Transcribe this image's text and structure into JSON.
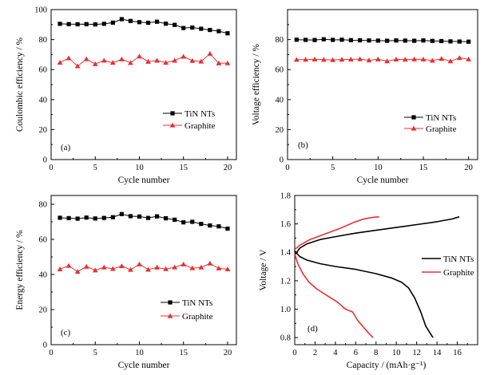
{
  "chart_data": [
    {
      "id": "a",
      "type": "line",
      "panel_label": "(a)",
      "xlabel": "Cycle number",
      "ylabel": "Coulombic efficiency / %",
      "xlim": [
        0,
        21
      ],
      "ylim": [
        0,
        100
      ],
      "xticks": [
        0,
        5,
        10,
        15,
        20
      ],
      "yticks": [
        0,
        20,
        40,
        60,
        80,
        100
      ],
      "legend_position": "lower-right",
      "x": [
        1,
        2,
        3,
        4,
        5,
        6,
        7,
        8,
        9,
        10,
        11,
        12,
        13,
        14,
        15,
        16,
        17,
        18,
        19,
        20
      ],
      "series": [
        {
          "name": "TiN NTs",
          "marker": "square",
          "color": "#000000",
          "values": [
            90.5,
            90.3,
            90.2,
            90.3,
            90.1,
            90.5,
            91.3,
            93.6,
            92.4,
            91.6,
            91.2,
            91.9,
            90.6,
            89.8,
            87.7,
            88.0,
            87.2,
            86.4,
            85.6,
            84.2
          ]
        },
        {
          "name": "Graphite",
          "marker": "triangle",
          "color": "#e8312f",
          "values": [
            64.7,
            67.6,
            62.3,
            67.0,
            63.7,
            66.1,
            64.6,
            66.9,
            64.5,
            68.8,
            65.3,
            66.0,
            64.6,
            66.0,
            68.7,
            65.9,
            65.4,
            70.6,
            64.2,
            64.3
          ]
        }
      ]
    },
    {
      "id": "b",
      "type": "line",
      "panel_label": "(b)",
      "xlabel": "Cycle number",
      "ylabel": "Voltage efficiency / %",
      "xlim": [
        0,
        21
      ],
      "ylim": [
        0,
        100
      ],
      "xticks": [
        0,
        5,
        10,
        15,
        20
      ],
      "yticks": [
        0,
        20,
        40,
        60,
        80
      ],
      "legend_position": "lower-right",
      "x": [
        1,
        2,
        3,
        4,
        5,
        6,
        7,
        8,
        9,
        10,
        11,
        12,
        13,
        14,
        15,
        16,
        17,
        18,
        19,
        20
      ],
      "series": [
        {
          "name": "TiN NTs",
          "marker": "square",
          "color": "#000000",
          "values": [
            79.9,
            79.8,
            79.7,
            80.2,
            79.8,
            79.9,
            79.6,
            79.5,
            79.4,
            79.3,
            79.2,
            79.4,
            79.3,
            79.2,
            79.4,
            79.1,
            79.0,
            78.8,
            78.7,
            78.6
          ]
        },
        {
          "name": "Graphite",
          "marker": "triangle",
          "color": "#e8312f",
          "values": [
            66.6,
            66.7,
            66.8,
            66.6,
            66.4,
            66.7,
            66.8,
            67.0,
            66.2,
            66.9,
            65.6,
            66.8,
            66.7,
            66.9,
            66.8,
            66.0,
            67.2,
            65.6,
            67.8,
            66.9
          ]
        }
      ]
    },
    {
      "id": "c",
      "type": "line",
      "panel_label": "(c)",
      "xlabel": "Cycle number",
      "ylabel": "Energy efficiency / %",
      "xlim": [
        0,
        21
      ],
      "ylim": [
        0,
        85
      ],
      "xticks": [
        0,
        5,
        10,
        15,
        20
      ],
      "yticks": [
        0,
        20,
        40,
        60,
        80
      ],
      "legend_position": "lower-right",
      "x": [
        1,
        2,
        3,
        4,
        5,
        6,
        7,
        8,
        9,
        10,
        11,
        12,
        13,
        14,
        15,
        16,
        17,
        18,
        19,
        20
      ],
      "series": [
        {
          "name": "TiN NTs",
          "marker": "square",
          "color": "#000000",
          "values": [
            72.3,
            72.1,
            71.8,
            72.4,
            71.9,
            72.2,
            72.6,
            74.4,
            73.2,
            73.0,
            72.2,
            73.1,
            72.0,
            71.2,
            69.7,
            70.0,
            68.8,
            67.9,
            67.4,
            66.1
          ]
        },
        {
          "name": "Graphite",
          "marker": "triangle",
          "color": "#e8312f",
          "values": [
            43.0,
            45.0,
            41.6,
            44.5,
            42.4,
            44.1,
            43.2,
            44.8,
            42.7,
            45.8,
            42.8,
            44.0,
            43.1,
            44.1,
            45.8,
            43.6,
            44.0,
            46.3,
            43.5,
            43.0
          ]
        }
      ]
    },
    {
      "id": "d",
      "type": "line",
      "panel_label": "(d)",
      "xlabel": "Capacity / (mAh·g⁻¹)",
      "ylabel": "Voltage / V",
      "xlim": [
        0,
        18
      ],
      "ylim": [
        0.75,
        1.8
      ],
      "xticks": [
        0,
        2,
        4,
        6,
        8,
        10,
        12,
        14,
        16
      ],
      "yticks": [
        0.8,
        1.0,
        1.2,
        1.4,
        1.6,
        1.8
      ],
      "ytick_labels": [
        "0.8",
        "1.0",
        "1.2",
        "1.4",
        "1.6",
        "1.8"
      ],
      "legend_position": "right",
      "series": [
        {
          "name": "TiN NTs",
          "color": "#000000",
          "segments": [
            [
              [
                0,
                1.38
              ],
              [
                0.5,
                1.43
              ],
              [
                1.2,
                1.46
              ],
              [
                2.5,
                1.49
              ],
              [
                4,
                1.51
              ],
              [
                6,
                1.535
              ],
              [
                8,
                1.555
              ],
              [
                10,
                1.575
              ],
              [
                12,
                1.595
              ],
              [
                14,
                1.615
              ],
              [
                15.5,
                1.635
              ],
              [
                16.2,
                1.65
              ]
            ],
            [
              [
                0,
                1.41
              ],
              [
                0.5,
                1.37
              ],
              [
                1.2,
                1.345
              ],
              [
                2.5,
                1.32
              ],
              [
                4,
                1.3
              ],
              [
                6,
                1.28
              ],
              [
                8,
                1.25
              ],
              [
                9.5,
                1.22
              ],
              [
                10.5,
                1.19
              ],
              [
                11.2,
                1.15
              ],
              [
                11.8,
                1.08
              ],
              [
                12.4,
                0.98
              ],
              [
                12.9,
                0.88
              ],
              [
                13.6,
                0.8
              ]
            ]
          ]
        },
        {
          "name": "Graphite",
          "color": "#e8312f",
          "segments": [
            [
              [
                0,
                1.42
              ],
              [
                0.5,
                1.45
              ],
              [
                1.5,
                1.49
              ],
              [
                3,
                1.53
              ],
              [
                4.5,
                1.57
              ],
              [
                5.8,
                1.61
              ],
              [
                6.8,
                1.635
              ],
              [
                7.6,
                1.645
              ],
              [
                8.3,
                1.65
              ]
            ],
            [
              [
                0,
                1.39
              ],
              [
                0.3,
                1.32
              ],
              [
                0.8,
                1.25
              ],
              [
                1.4,
                1.19
              ],
              [
                2.2,
                1.14
              ],
              [
                3.3,
                1.09
              ],
              [
                4.2,
                1.05
              ],
              [
                5.0,
                1.0
              ],
              [
                5.7,
                0.98
              ],
              [
                6.2,
                0.92
              ],
              [
                6.8,
                0.87
              ],
              [
                7.3,
                0.83
              ],
              [
                7.7,
                0.8
              ]
            ]
          ]
        }
      ]
    }
  ]
}
